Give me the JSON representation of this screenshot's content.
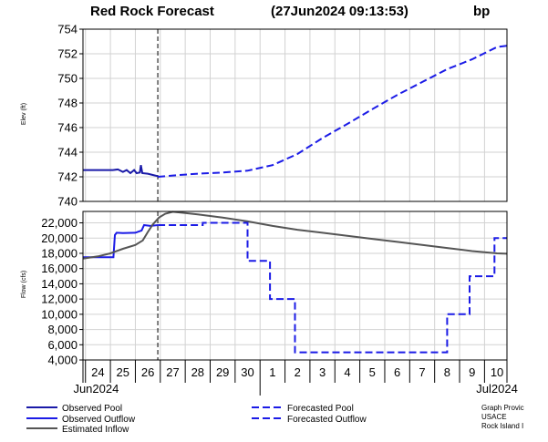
{
  "header": {
    "title": "Red Rock Forecast",
    "timestamp": "(27Jun2024  09:13:53)",
    "station_code": "bp"
  },
  "chart_data": [
    {
      "type": "line",
      "panel": "elevation",
      "ylabel": "Elev (ft)",
      "ylim": [
        740,
        754
      ],
      "yticks": [
        "740",
        "742",
        "744",
        "746",
        "748",
        "750",
        "752",
        "754"
      ],
      "grid": true,
      "x_unit": "days from 24 Jun 2024 00:00",
      "xlim": [
        -0.6,
        16.4
      ],
      "nowline_x": 2.4,
      "series": [
        {
          "name": "Observed Pool",
          "style": "solid",
          "color": "#1a1aa8",
          "points": [
            [
              -0.6,
              742.55
            ],
            [
              0,
              742.55
            ],
            [
              0.6,
              742.55
            ],
            [
              0.8,
              742.6
            ],
            [
              1.0,
              742.4
            ],
            [
              1.15,
              742.55
            ],
            [
              1.3,
              742.3
            ],
            [
              1.45,
              742.55
            ],
            [
              1.55,
              742.3
            ],
            [
              1.68,
              742.35
            ],
            [
              1.72,
              742.95
            ],
            [
              1.78,
              742.3
            ],
            [
              2.0,
              742.25
            ],
            [
              2.2,
              742.15
            ],
            [
              2.4,
              742.05
            ]
          ]
        },
        {
          "name": "Forecasted Pool",
          "style": "dashed",
          "color": "#1b1be6",
          "points": [
            [
              2.4,
              742.0
            ],
            [
              3,
              742.1
            ],
            [
              4,
              742.25
            ],
            [
              5,
              742.35
            ],
            [
              6,
              742.5
            ],
            [
              7,
              742.95
            ],
            [
              8,
              743.85
            ],
            [
              9,
              745.15
            ],
            [
              10,
              746.3
            ],
            [
              11,
              747.5
            ],
            [
              12,
              748.65
            ],
            [
              13,
              749.7
            ],
            [
              14,
              750.75
            ],
            [
              15,
              751.55
            ],
            [
              16,
              752.55
            ],
            [
              16.4,
              752.65
            ]
          ]
        }
      ]
    },
    {
      "type": "line",
      "panel": "flow",
      "ylabel": "Flow (cfs)",
      "ylim": [
        4000,
        23500
      ],
      "yticks": [
        "4,000",
        "6,000",
        "8,000",
        "10,000",
        "12,000",
        "14,000",
        "16,000",
        "18,000",
        "20,000",
        "22,000"
      ],
      "grid": true,
      "x_unit": "days from 24 Jun 2024 00:00",
      "xlim": [
        -0.6,
        16.4
      ],
      "nowline_x": 2.4,
      "xtick_labels": [
        "24",
        "25",
        "26",
        "27",
        "28",
        "29",
        "30",
        "1",
        "2",
        "3",
        "4",
        "5",
        "6",
        "7",
        "8",
        "9",
        "10"
      ],
      "xtick_values": [
        0,
        1,
        2,
        3,
        4,
        5,
        6,
        7,
        8,
        9,
        10,
        11,
        12,
        13,
        14,
        15,
        16
      ],
      "month_labels": [
        {
          "text": "Jun2024",
          "x": 0
        },
        {
          "text": "Jul2024",
          "x": 16
        }
      ],
      "series": [
        {
          "name": "Observed Outflow",
          "style": "solid",
          "color": "#1b1be6",
          "points": [
            [
              -0.6,
              17500
            ],
            [
              0.5,
              17500
            ],
            [
              0.62,
              17500
            ],
            [
              0.68,
              20400
            ],
            [
              0.75,
              20700
            ],
            [
              1.0,
              20650
            ],
            [
              1.5,
              20700
            ],
            [
              1.75,
              21000
            ],
            [
              1.85,
              21700
            ],
            [
              2.1,
              21600
            ],
            [
              2.4,
              21700
            ]
          ]
        },
        {
          "name": "Estimated Inflow",
          "style": "solid",
          "color": "#555555",
          "points": [
            [
              -0.6,
              17300
            ],
            [
              0,
              17600
            ],
            [
              0.5,
              18000
            ],
            [
              1,
              18600
            ],
            [
              1.5,
              19100
            ],
            [
              1.8,
              19700
            ],
            [
              2.0,
              20800
            ],
            [
              2.2,
              21800
            ],
            [
              2.45,
              22700
            ],
            [
              2.7,
              23200
            ],
            [
              3.0,
              23450
            ],
            [
              3.5,
              23300
            ],
            [
              4,
              23100
            ],
            [
              5,
              22700
            ],
            [
              6,
              22200
            ],
            [
              7,
              21600
            ],
            [
              8,
              21100
            ],
            [
              9,
              20700
            ],
            [
              10,
              20300
            ],
            [
              11,
              19900
            ],
            [
              12,
              19500
            ],
            [
              13,
              19100
            ],
            [
              14,
              18700
            ],
            [
              15,
              18300
            ],
            [
              16,
              18000
            ],
            [
              16.4,
              17950
            ]
          ]
        },
        {
          "name": "Forecasted Outflow",
          "style": "dashed",
          "color": "#1b1be6",
          "points": [
            [
              2.4,
              21700
            ],
            [
              4.2,
              21700
            ],
            [
              4.2,
              22000
            ],
            [
              6.0,
              22000
            ],
            [
              6.0,
              17000
            ],
            [
              6.9,
              17000
            ],
            [
              6.9,
              12000
            ],
            [
              7.9,
              12000
            ],
            [
              7.9,
              5000
            ],
            [
              14.0,
              5000
            ],
            [
              14.0,
              10000
            ],
            [
              14.9,
              10000
            ],
            [
              14.9,
              15000
            ],
            [
              15.9,
              15000
            ],
            [
              15.9,
              20000
            ],
            [
              16.4,
              20000
            ]
          ]
        }
      ]
    }
  ],
  "legend": {
    "items": [
      {
        "label": "Observed Pool",
        "style": "solid",
        "color": "#1a1aa8"
      },
      {
        "label": "Observed Outflow",
        "style": "solid",
        "color": "#1b1be6"
      },
      {
        "label": "Estimated Inflow",
        "style": "solid",
        "color": "#555555"
      },
      {
        "label": "Forecasted Pool",
        "style": "dashed",
        "color": "#1b1be6"
      },
      {
        "label": "Forecasted Outflow",
        "style": "dashed",
        "color": "#1b1be6"
      }
    ]
  },
  "footer_note": [
    "Graph Provic",
    "USACE",
    "Rock Island I"
  ]
}
